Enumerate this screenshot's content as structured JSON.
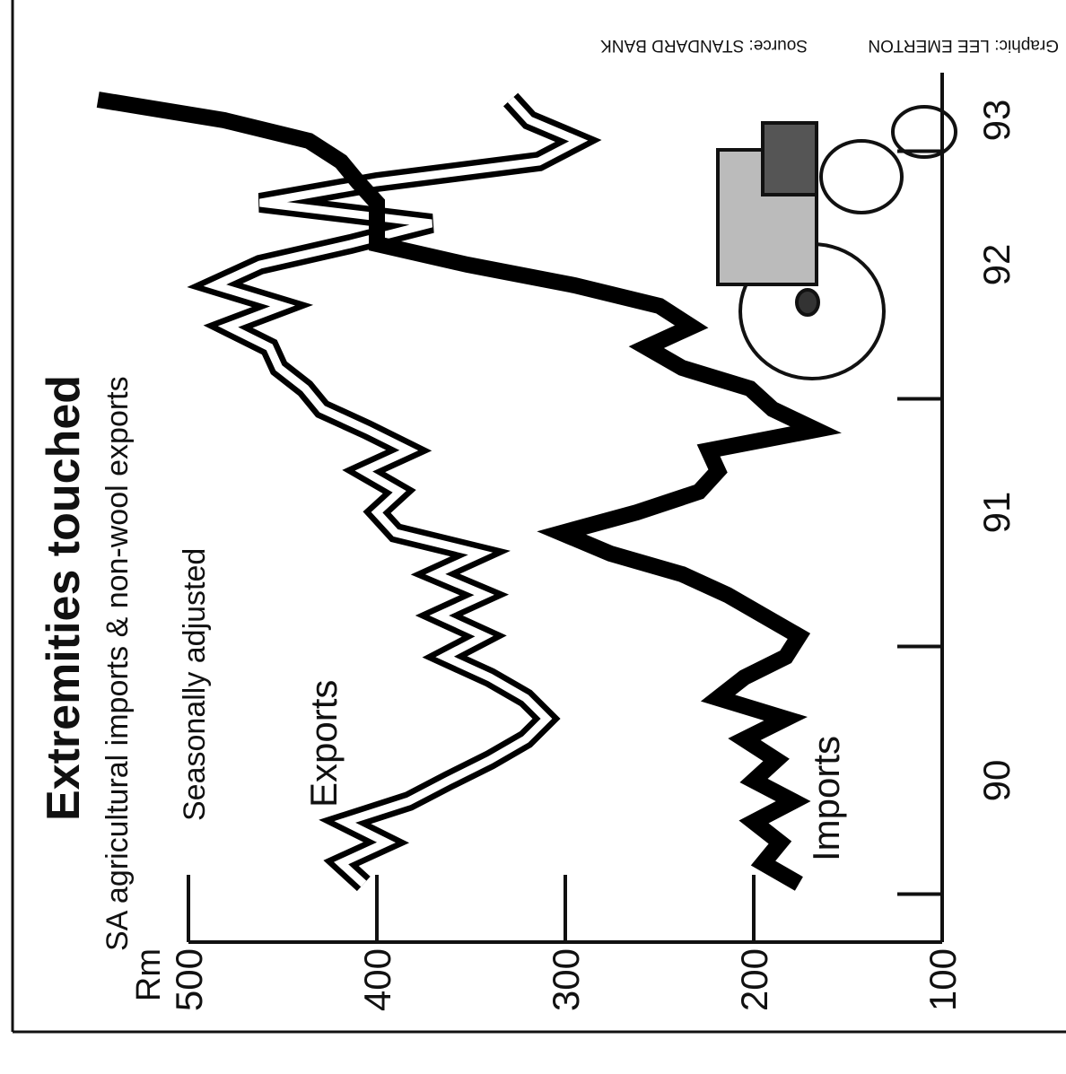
{
  "chart_data": {
    "type": "line",
    "title": "Extremities touched",
    "subtitle": "SA agricultural imports & non-wool exports",
    "note": "Seasonally adjusted",
    "y_label": "Rm",
    "credit": "Graphic: LEE EMERTON",
    "source": "Source: STANDARD BANK",
    "categories": [
      null,
      null,
      null,
      null,
      null,
      "90",
      null,
      null,
      null,
      null,
      null,
      null,
      null,
      null,
      null,
      null,
      null,
      null,
      "91",
      null,
      null,
      null,
      null,
      null,
      null,
      null,
      null,
      null,
      null,
      null,
      "92",
      null,
      null,
      null,
      null,
      null,
      null,
      "93",
      null
    ],
    "series": [
      {
        "name": "Exports",
        "color": "#ffffff",
        "outline": "#000000",
        "values": [
          407,
          419,
          395,
          417,
          383,
          362,
          340,
          321,
          310,
          321,
          340,
          364,
          343,
          367,
          343,
          369,
          345,
          390,
          400,
          388,
          407,
          383,
          405,
          429,
          438,
          452,
          457,
          479,
          450,
          486,
          462,
          414,
          371,
          462,
          400,
          314,
          293,
          319,
          329
        ]
      },
      {
        "name": "Imports",
        "color": "#000000",
        "values": [
          176,
          195,
          186,
          200,
          179,
          200,
          188,
          205,
          183,
          219,
          205,
          183,
          176,
          195,
          214,
          238,
          276,
          302,
          262,
          229,
          219,
          224,
          167,
          190,
          202,
          238,
          257,
          233,
          250,
          295,
          352,
          400,
          400,
          400,
          410,
          419,
          436,
          481,
          548
        ]
      }
    ],
    "ylim": [
      100,
      500
    ],
    "yticks": [
      100,
      200,
      300,
      400,
      500
    ]
  }
}
